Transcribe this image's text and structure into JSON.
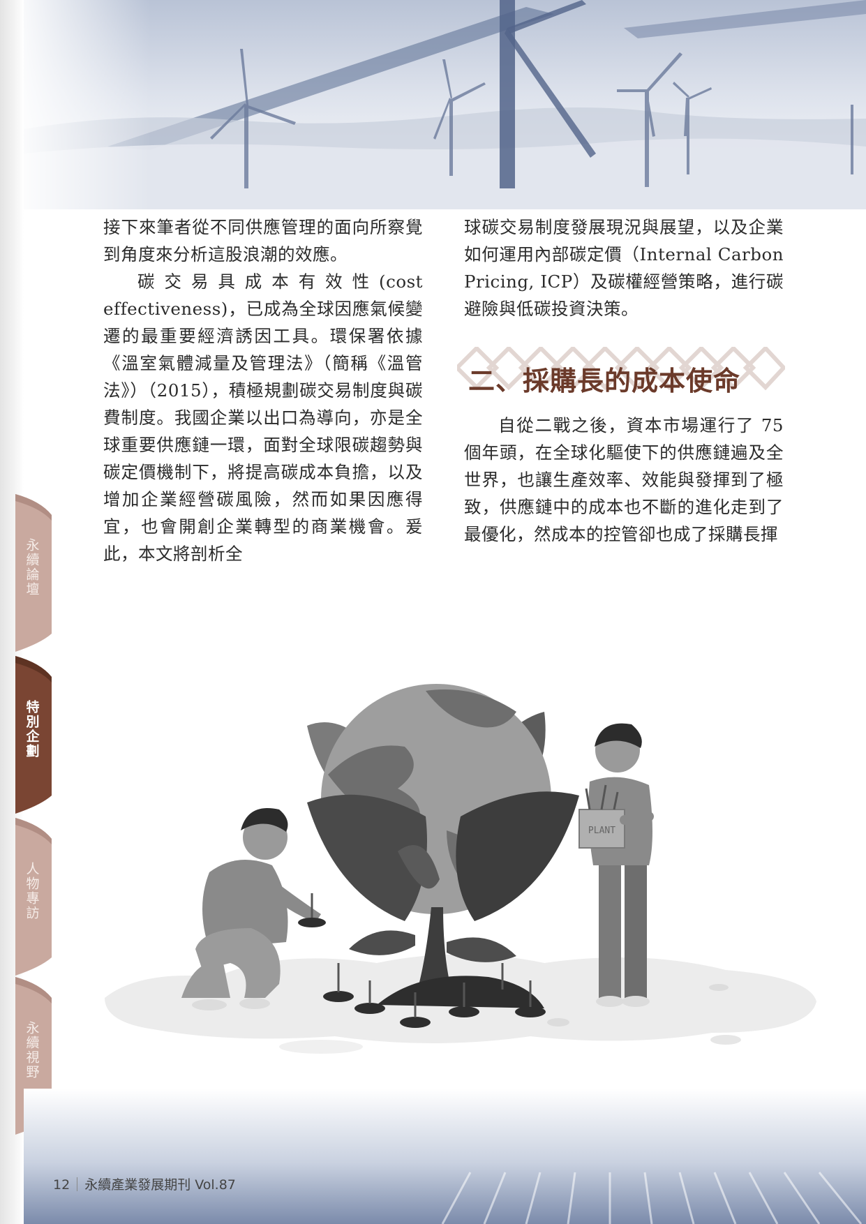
{
  "left_column": {
    "para1": "接下來筆者從不同供應管理的面向所察覺到角度來分析這股浪潮的效應。",
    "para2": "碳交易具成本有效性(cost effectiveness)，已成為全球因應氣候變遷的最重要經濟誘因工具。環保署依據《溫室氣體減量及管理法》（簡稱《溫管法》）（2015），積極規劃碳交易制度與碳費制度。我國企業以出口為導向，亦是全球重要供應鏈一環，面對全球限碳趨勢與碳定價機制下，將提高碳成本負擔，以及增加企業經營碳風險，然而如果因應得宜，也會開創企業轉型的商業機會。爰此，本文將剖析全"
  },
  "right_column": {
    "para1": "球碳交易制度發展現況與展望，以及企業如何運用內部碳定價（Internal Carbon Pricing, ICP）及碳權經營策略，進行碳避險與低碳投資決策。",
    "section_title": "二、採購長的成本使命",
    "para2": "自從二戰之後，資本市場運行了 75 個年頭，在全球化驅使下的供應鏈遍及全世界，也讓生產效率、效能與發揮到了極致，供應鏈中的成本也不斷的進化走到了最優化，然成本的控管卻也成了採購長揮"
  },
  "side_tabs": [
    {
      "label": "永續論壇",
      "active": false
    },
    {
      "label": "特別企劃",
      "active": true
    },
    {
      "label": "人物專訪",
      "active": false
    },
    {
      "label": "永續視野",
      "active": false
    }
  ],
  "illustration": {
    "box_label": "PLANT"
  },
  "footer": {
    "page_number": "12",
    "publication": "永續產業發展期刊 Vol.87"
  },
  "colors": {
    "accent_brown": "#6b3a2a",
    "tab_inactive": "#c9a99f",
    "tab_active": "#7a4533",
    "header_blue": "#4a5f86"
  }
}
